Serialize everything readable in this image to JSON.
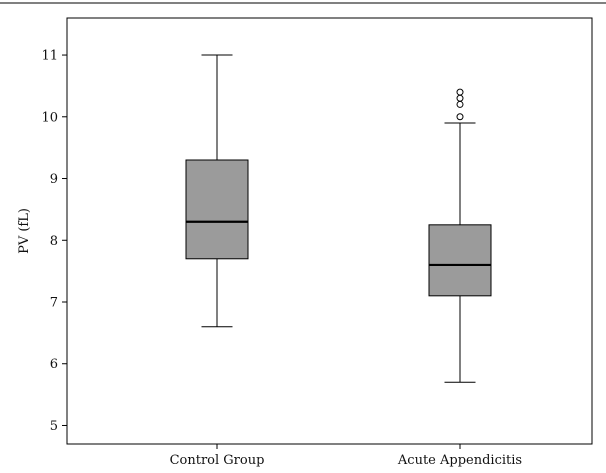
{
  "chart_data": {
    "type": "box",
    "title": "",
    "xlabel": "",
    "ylabel": "PV (fL)",
    "ylim": [
      4.7,
      11.6
    ],
    "yticks": [
      5,
      6,
      7,
      8,
      9,
      10,
      11
    ],
    "grid": false,
    "box_color": "#9b9b9b",
    "line_color": "#000000",
    "categories": [
      "Control Group",
      "Acute Appendicitis"
    ],
    "boxes": [
      {
        "category": "Control Group",
        "whisker_low": 6.6,
        "q1": 7.7,
        "median": 8.3,
        "q3": 9.3,
        "whisker_high": 11.0,
        "outliers": []
      },
      {
        "category": "Acute Appendicitis",
        "whisker_low": 5.7,
        "q1": 7.1,
        "median": 7.6,
        "q3": 8.25,
        "whisker_high": 9.9,
        "outliers": [
          10.0,
          10.2,
          10.3,
          10.4
        ]
      }
    ]
  }
}
